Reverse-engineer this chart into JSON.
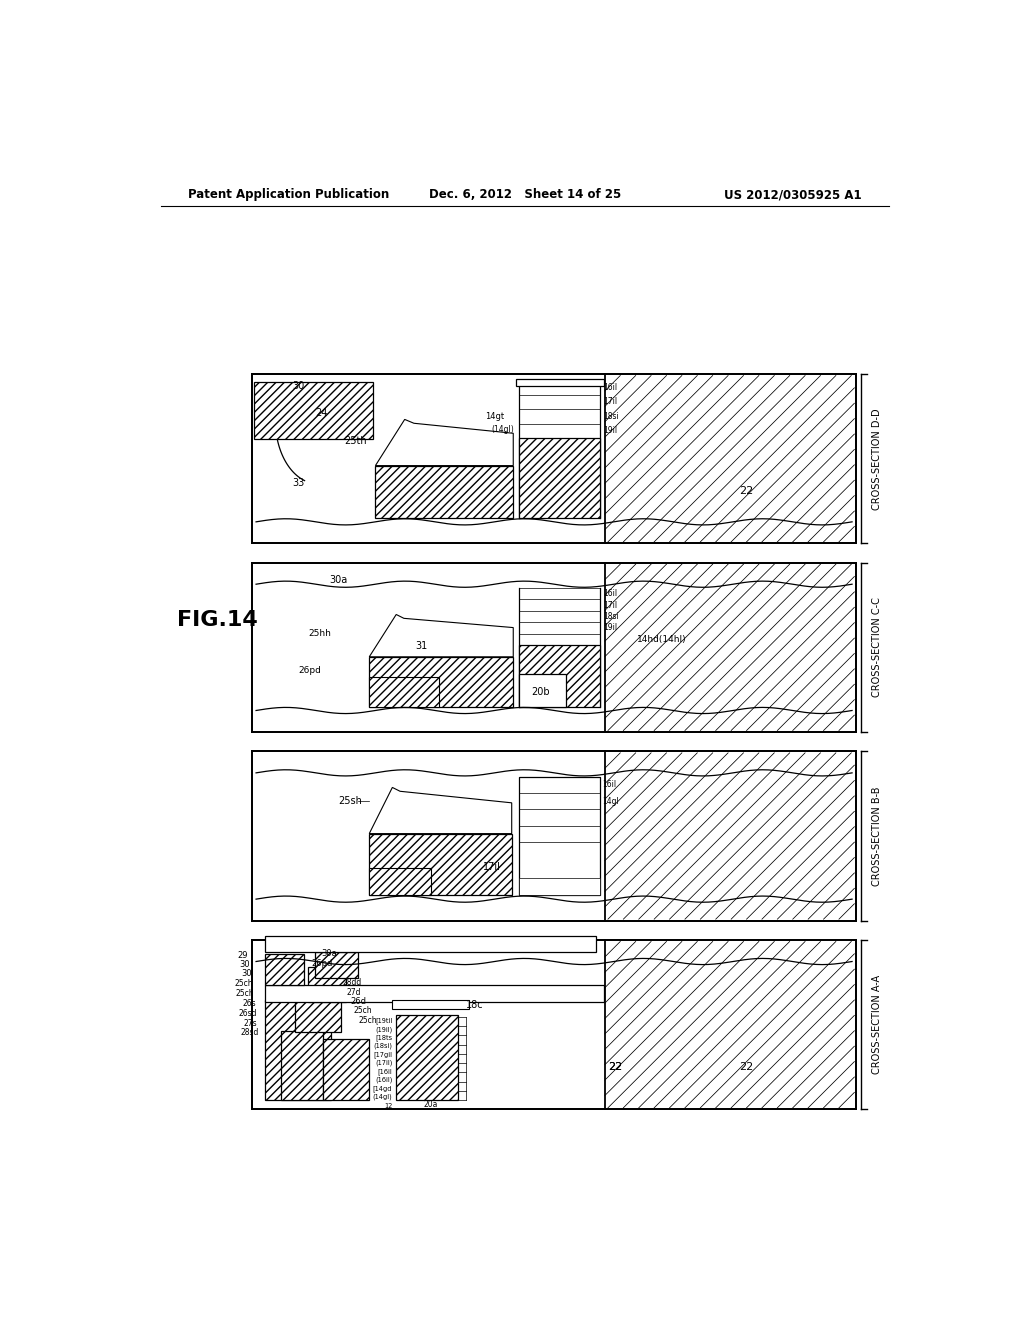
{
  "header_left": "Patent Application Publication",
  "header_mid": "Dec. 6, 2012   Sheet 14 of 25",
  "header_right": "US 2012/0305925 A1",
  "fig_label": "FIG.14",
  "section_labels": [
    "CROSS-SECTION A-A",
    "CROSS-SECTION B-B",
    "CROSS-SECTION C-C",
    "CROSS-SECTION D-D"
  ],
  "bg_color": "#ffffff"
}
